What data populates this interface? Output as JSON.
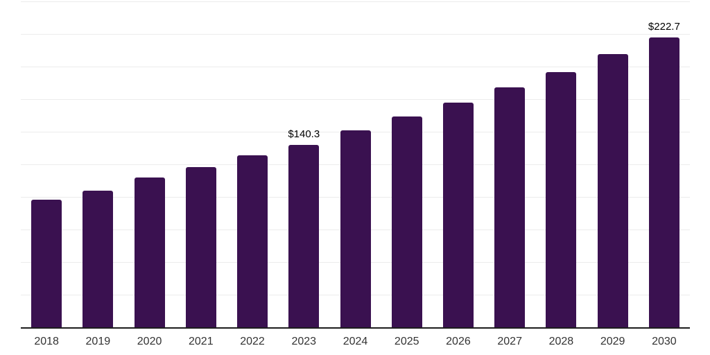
{
  "chart_data": {
    "type": "bar",
    "categories": [
      "2018",
      "2019",
      "2020",
      "2021",
      "2022",
      "2023",
      "2024",
      "2025",
      "2026",
      "2027",
      "2028",
      "2029",
      "2030"
    ],
    "values": [
      98.2,
      104.9,
      115.3,
      123.1,
      132.0,
      140.3,
      151.4,
      161.8,
      172.4,
      184.2,
      196.0,
      210.0,
      222.7
    ],
    "value_labels": [
      {
        "category": "2023",
        "text": "$140.3"
      },
      {
        "category": "2030",
        "text": "$222.7"
      }
    ],
    "ylim": [
      0,
      250
    ],
    "gridline_interval": 25,
    "grid": "horizontal",
    "legend": "none",
    "y_axis_labels_visible": false,
    "title": ""
  },
  "colors": {
    "bar": "#3a1150",
    "gridline": "#ececec",
    "axis": "#1d1d1d",
    "tick_label": "#333333",
    "value_label": "#000000",
    "background": "#ffffff"
  }
}
